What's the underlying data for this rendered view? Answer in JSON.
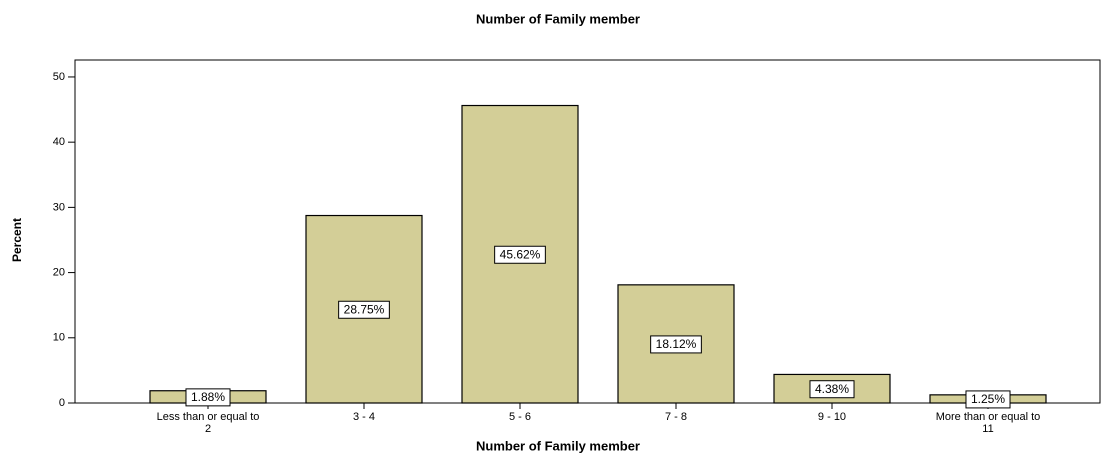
{
  "chart_data": {
    "type": "bar",
    "title": "Number of Family member",
    "x_label": "Number of Family member",
    "y_label": "Percent",
    "categories": [
      "Less than or equal to 2",
      "3 - 4",
      "5 - 6",
      "7 - 8",
      "9 - 10",
      "More than or equal to 11"
    ],
    "values": [
      1.88,
      28.75,
      45.62,
      18.12,
      4.38,
      1.25
    ],
    "value_labels": [
      "1.88%",
      "28.75%",
      "45.62%",
      "18.12%",
      "4.38%",
      "1.25%"
    ],
    "color": "#d3ce97",
    "ylim": [
      0,
      52.6
    ],
    "yticks": [
      0,
      10,
      20,
      30,
      40,
      50
    ],
    "grid": false
  }
}
